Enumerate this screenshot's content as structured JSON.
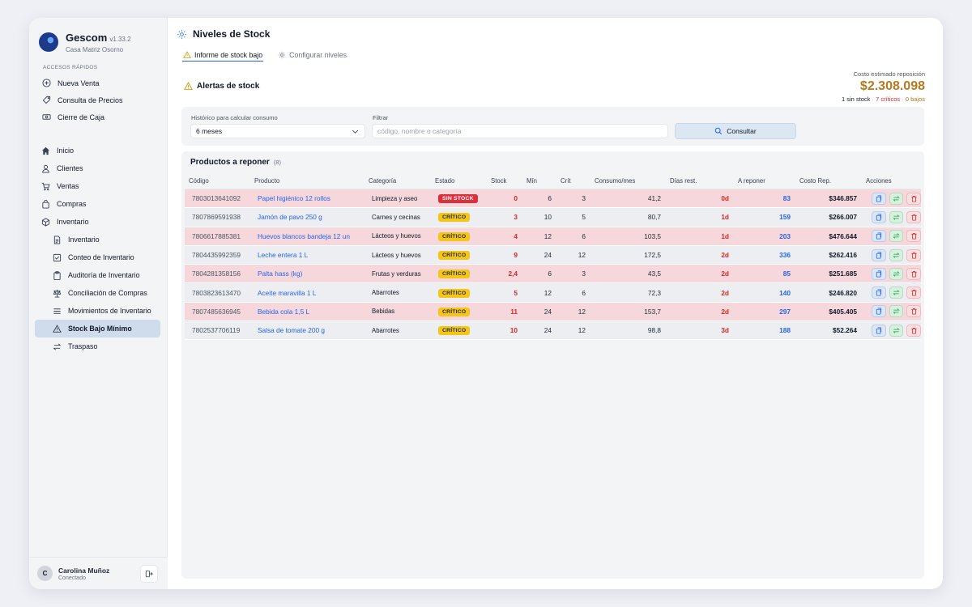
{
  "app": {
    "name": "Gescom",
    "version": "v1.33.2",
    "branch": "Casa Matriz Osorno"
  },
  "sidebar": {
    "quick_label": "ACCESOS RÁPIDOS",
    "quick": [
      {
        "label": "Nueva Venta",
        "icon": "plus-circle-icon"
      },
      {
        "label": "Consulta de Precios",
        "icon": "tag-icon"
      },
      {
        "label": "Cierre de Caja",
        "icon": "cash-icon"
      }
    ],
    "main": [
      {
        "label": "Inicio",
        "icon": "home-icon"
      },
      {
        "label": "Clientes",
        "icon": "users-icon"
      },
      {
        "label": "Ventas",
        "icon": "cart-icon"
      },
      {
        "label": "Compras",
        "icon": "shopping-bag-icon"
      },
      {
        "label": "Inventario",
        "icon": "box-icon"
      }
    ],
    "sub": [
      {
        "label": "Inventario",
        "icon": "document-icon"
      },
      {
        "label": "Conteo de Inventario",
        "icon": "checklist-icon"
      },
      {
        "label": "Auditoría de Inventario",
        "icon": "clipboard-icon"
      },
      {
        "label": "Conciliación de Compras",
        "icon": "scale-icon"
      },
      {
        "label": "Movimientos de Inventario",
        "icon": "list-icon"
      },
      {
        "label": "Stock Bajo Mínimo",
        "icon": "warning-icon"
      },
      {
        "label": "Traspaso",
        "icon": "transfer-icon"
      }
    ],
    "active": "Stock Bajo Mínimo"
  },
  "user": {
    "initial": "C",
    "name": "Carolina Muñoz",
    "status": "Conectado"
  },
  "page": {
    "title": "Niveles de Stock"
  },
  "tabs": [
    {
      "label": "Informe de stock bajo",
      "active": true
    },
    {
      "label": "Configurar niveles",
      "active": false
    }
  ],
  "alerts": {
    "title": "Alertas de stock"
  },
  "cost": {
    "label": "Costo estimado reposición",
    "value": "$2.308.098",
    "no_stock": "1 sin stock",
    "critical": "7 críticos",
    "low": "0 bajos",
    "sep": "·"
  },
  "filters": {
    "history_label": "Histórico para calcular consumo",
    "history_value": "6 meses",
    "filter_label": "Filtrar",
    "filter_placeholder": "código, nombre o categoría",
    "filter_value": "",
    "consult_label": "Consultar"
  },
  "products": {
    "title": "Productos a reponer",
    "count": "(8)",
    "columns": [
      "Código",
      "Producto",
      "Categoría",
      "Estado",
      "Stock",
      "Mín",
      "Crít",
      "Consumo/mes",
      "Días rest.",
      "A reponer",
      "Costo Rep.",
      "Acciones"
    ],
    "rows": [
      {
        "code": "7803013641092",
        "product": "Papel higiénico 12 rollos",
        "category": "Limpieza y aseo",
        "status": "SIN STOCK",
        "stock": "0",
        "min": "6",
        "crit": "3",
        "consumption": "41,2",
        "days": "0d",
        "reorder": "83",
        "cost": "$346.857"
      },
      {
        "code": "7807869591938",
        "product": "Jamón de pavo 250 g",
        "category": "Carnes y cecinas",
        "status": "CRÍTICO",
        "stock": "3",
        "min": "10",
        "crit": "5",
        "consumption": "80,7",
        "days": "1d",
        "reorder": "159",
        "cost": "$266.007"
      },
      {
        "code": "7806617885381",
        "product": "Huevos blancos bandeja 12 un",
        "category": "Lácteos y huevos",
        "status": "CRÍTICO",
        "stock": "4",
        "min": "12",
        "crit": "6",
        "consumption": "103,5",
        "days": "1d",
        "reorder": "203",
        "cost": "$476.644"
      },
      {
        "code": "7804435992359",
        "product": "Leche entera 1 L",
        "category": "Lácteos y huevos",
        "status": "CRÍTICO",
        "stock": "9",
        "min": "24",
        "crit": "12",
        "consumption": "172,5",
        "days": "2d",
        "reorder": "336",
        "cost": "$262.416"
      },
      {
        "code": "7804281358156",
        "product": "Palta hass (kg)",
        "category": "Frutas y verduras",
        "status": "CRÍTICO",
        "stock": "2,4",
        "min": "6",
        "crit": "3",
        "consumption": "43,5",
        "days": "2d",
        "reorder": "85",
        "cost": "$251.685"
      },
      {
        "code": "7803823613470",
        "product": "Aceite maravilla 1 L",
        "category": "Abarrotes",
        "status": "CRÍTICO",
        "stock": "5",
        "min": "12",
        "crit": "6",
        "consumption": "72,3",
        "days": "2d",
        "reorder": "140",
        "cost": "$246.820"
      },
      {
        "code": "7807485636945",
        "product": "Bebida cola 1,5 L",
        "category": "Bebidas",
        "status": "CRÍTICO",
        "stock": "11",
        "min": "24",
        "crit": "12",
        "consumption": "153,7",
        "days": "2d",
        "reorder": "297",
        "cost": "$405.405"
      },
      {
        "code": "7802537706119",
        "product": "Salsa de tomate 200 g",
        "category": "Abarrotes",
        "status": "CRÍTICO",
        "stock": "10",
        "min": "24",
        "crit": "12",
        "consumption": "98,8",
        "days": "3d",
        "reorder": "188",
        "cost": "$52.264"
      }
    ]
  },
  "colors": {
    "accent": "#2563eb",
    "critical": "#dc2626",
    "warning": "#f5c518",
    "cost": "#b7791f"
  }
}
